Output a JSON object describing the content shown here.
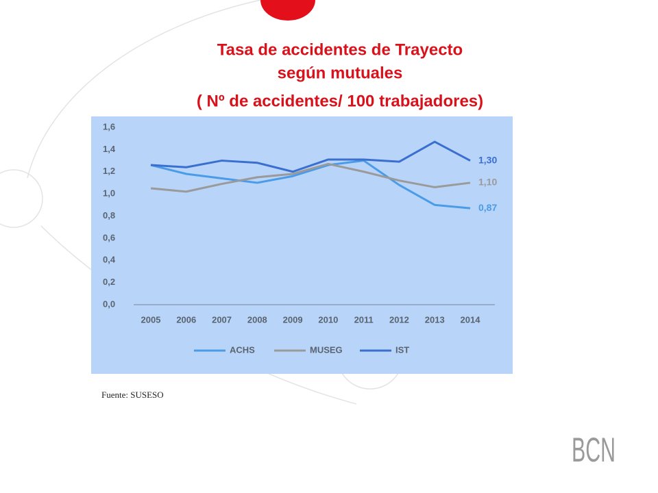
{
  "chart_data": {
    "type": "line",
    "title": [
      "Tasa de accidentes de Trayecto",
      "según mutuales",
      "( Nº de accidentes/ 100 trabajadores)"
    ],
    "categories": [
      "2005",
      "2006",
      "2007",
      "2008",
      "2009",
      "2010",
      "2011",
      "2012",
      "2013",
      "2014"
    ],
    "series": [
      {
        "name": "ACHS",
        "color": "#4a9be8",
        "values": [
          1.26,
          1.18,
          1.14,
          1.1,
          1.16,
          1.26,
          1.3,
          1.08,
          0.9,
          0.87
        ],
        "value_labels": [
          null,
          null,
          null,
          null,
          null,
          null,
          null,
          null,
          null,
          "0,87"
        ]
      },
      {
        "name": "MUSEG",
        "color": "#9a9a9a",
        "values": [
          1.05,
          1.02,
          1.09,
          1.15,
          1.18,
          1.27,
          1.2,
          1.12,
          1.06,
          1.1
        ],
        "value_labels": [
          null,
          null,
          null,
          null,
          null,
          null,
          null,
          null,
          null,
          "1,10"
        ]
      },
      {
        "name": "IST",
        "color": "#3a6fd0",
        "values": [
          1.26,
          1.24,
          1.3,
          1.28,
          1.2,
          1.31,
          1.31,
          1.29,
          1.47,
          1.3
        ],
        "value_labels": [
          null,
          null,
          null,
          null,
          null,
          null,
          null,
          null,
          null,
          "1,30"
        ]
      }
    ],
    "ylim": [
      0,
      1.6
    ],
    "yticks": [
      {
        "value": 0,
        "label": "0,0"
      },
      {
        "value": 0.2,
        "label": "0,2"
      },
      {
        "value": 0.4,
        "label": "0,4"
      },
      {
        "value": 0.6,
        "label": "0,6"
      },
      {
        "value": 0.8,
        "label": "0,8"
      },
      {
        "value": 1.0,
        "label": "1,0"
      },
      {
        "value": 1.2,
        "label": "1,2"
      },
      {
        "value": 1.4,
        "label": "1,4"
      },
      {
        "value": 1.6,
        "label": "1,6"
      }
    ],
    "grid": false,
    "legend": "bottom"
  },
  "source": "Fuente: SUSESO",
  "logo": "BCN"
}
